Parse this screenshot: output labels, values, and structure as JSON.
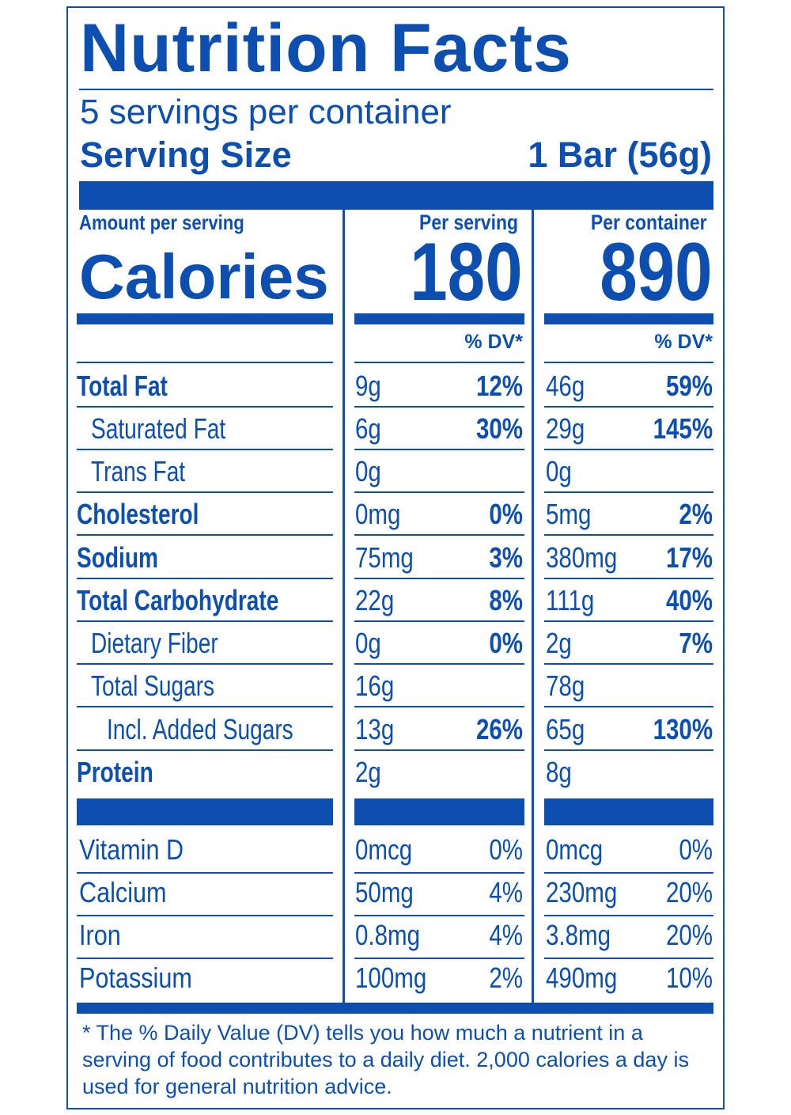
{
  "title": "Nutrition Facts",
  "servings_per_container": "5 servings per container",
  "serving_size_label": "Serving Size",
  "serving_size_value": "1 Bar (56g)",
  "amount_per_serving": "Amount per serving",
  "per_serving_label": "Per serving",
  "per_container_label": "Per container",
  "calories_label": "Calories",
  "calories_per_serving": "180",
  "calories_per_container": "890",
  "dv_header": "% DV*",
  "nutrients": [
    {
      "name": "Total Fat",
      "serving_amount": "9g",
      "serving_dv": "12%",
      "container_amount": "46g",
      "container_dv": "59%"
    },
    {
      "name": "Saturated Fat",
      "serving_amount": "6g",
      "serving_dv": "30%",
      "container_amount": "29g",
      "container_dv": "145%"
    },
    {
      "name": "Trans Fat",
      "serving_amount": "0g",
      "serving_dv": "",
      "container_amount": "0g",
      "container_dv": ""
    },
    {
      "name": "Cholesterol",
      "serving_amount": "0mg",
      "serving_dv": "0%",
      "container_amount": "5mg",
      "container_dv": "2%"
    },
    {
      "name": "Sodium",
      "serving_amount": "75mg",
      "serving_dv": "3%",
      "container_amount": "380mg",
      "container_dv": "17%"
    },
    {
      "name": "Total Carbohydrate",
      "serving_amount": "22g",
      "serving_dv": "8%",
      "container_amount": "111g",
      "container_dv": "40%"
    },
    {
      "name": "Dietary Fiber",
      "serving_amount": "0g",
      "serving_dv": "0%",
      "container_amount": "2g",
      "container_dv": "7%"
    },
    {
      "name": "Total Sugars",
      "serving_amount": "16g",
      "serving_dv": "",
      "container_amount": "78g",
      "container_dv": ""
    },
    {
      "name": "Incl. Added Sugars",
      "serving_amount": "13g",
      "serving_dv": "26%",
      "container_amount": "65g",
      "container_dv": "130%"
    },
    {
      "name": "Protein",
      "serving_amount": "2g",
      "serving_dv": "",
      "container_amount": "8g",
      "container_dv": ""
    }
  ],
  "vitamins": [
    {
      "name": "Vitamin D",
      "serving_amount": "0mcg",
      "serving_dv": "0%",
      "container_amount": "0mcg",
      "container_dv": "0%"
    },
    {
      "name": "Calcium",
      "serving_amount": "50mg",
      "serving_dv": "4%",
      "container_amount": "230mg",
      "container_dv": "20%"
    },
    {
      "name": "Iron",
      "serving_amount": "0.8mg",
      "serving_dv": "4%",
      "container_amount": "3.8mg",
      "container_dv": "20%"
    },
    {
      "name": "Potassium",
      "serving_amount": "100mg",
      "serving_dv": "2%",
      "container_amount": "490mg",
      "container_dv": "10%"
    }
  ],
  "footnote": "* The % Daily Value (DV) tells you how much a nutrient in a serving of food contributes to a daily diet. 2,000 calories a day is used for general nutrition advice.",
  "colors": {
    "primary": "#0c4fb0",
    "background": "#ffffff"
  }
}
